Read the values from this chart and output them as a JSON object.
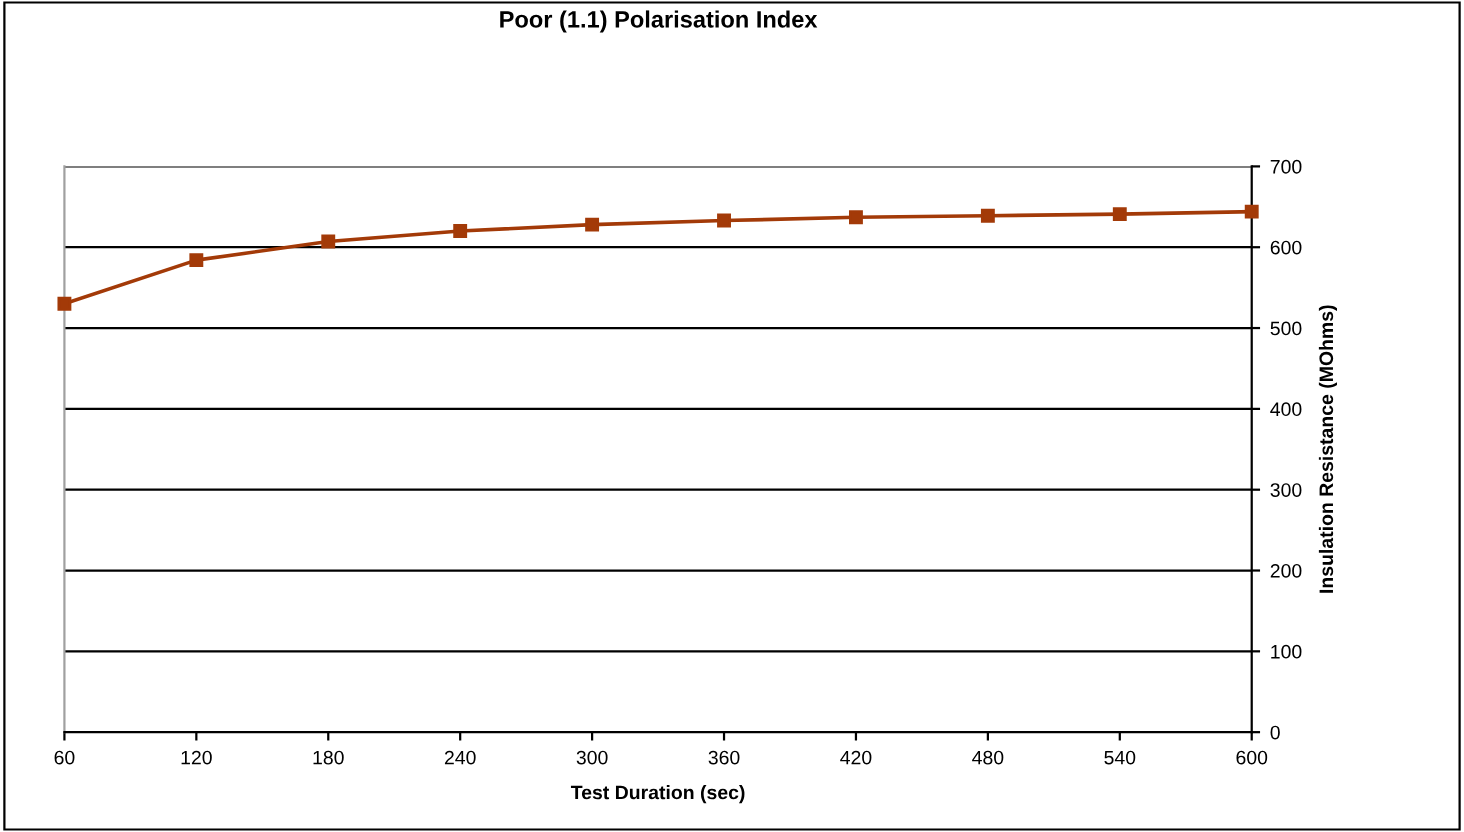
{
  "chart_data": {
    "type": "line",
    "title": "Poor (1.1) Polarisation Index",
    "xlabel": "Test Duration (sec)",
    "ylabel": "Insulation Resistance (MOhms)",
    "x": [
      60,
      120,
      180,
      240,
      300,
      360,
      420,
      480,
      540,
      600
    ],
    "series": [
      {
        "color": "#a33a08",
        "values": [
          530,
          584,
          607,
          620,
          628,
          633,
          637,
          639,
          641,
          644
        ]
      }
    ],
    "xlim": [
      60,
      600
    ],
    "xticks": [
      60,
      120,
      180,
      240,
      300,
      360,
      420,
      480,
      540,
      600
    ],
    "ylim": [
      0,
      700
    ],
    "yticks": [
      0,
      100,
      200,
      300,
      400,
      500,
      600,
      700
    ],
    "grid": "y",
    "marker": "square",
    "line_style": "solid"
  }
}
